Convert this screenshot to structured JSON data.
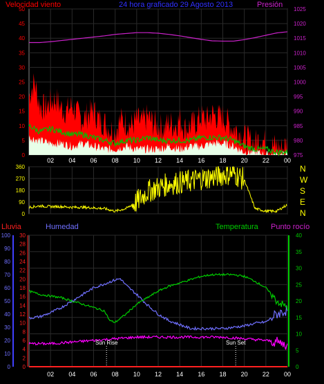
{
  "header": {
    "wind_title": "Velocidad viento",
    "center_title": "24 hora graficado   29 Agosto 2013",
    "pressure_title": "Presión"
  },
  "compass": [
    "N",
    "W",
    "S",
    "E",
    "N"
  ],
  "bottom_header": {
    "rain": "Lluvia",
    "humidity": "Humedad",
    "temperature": "Temperatura",
    "dewpoint": "Punto rocío"
  },
  "annotations": {
    "sunrise": "Sun Rise",
    "sunset": "Sun Set"
  },
  "colors": {
    "wind_gust": "#ff0000",
    "wind_avg": "#00c000",
    "wind_min": "#ffffff",
    "pressure": "#cc22cc",
    "direction": "#ffff00",
    "rain": "#ff2020",
    "humidity": "#7070ff",
    "temperature": "#00cc00",
    "dewpoint": "#ff00ff",
    "axis_blue": "#4040ff",
    "grid": "#2a2a2a"
  },
  "chart_data": [
    {
      "type": "area",
      "title": "Velocidad viento",
      "xlabel": "",
      "ylabel": "Velocidad viento",
      "x_ticks": [
        "02",
        "04",
        "06",
        "08",
        "10",
        "12",
        "14",
        "16",
        "18",
        "20",
        "22",
        "00"
      ],
      "x_range": [
        0,
        24
      ],
      "ylim": [
        0,
        50
      ],
      "y_ticks": [
        0,
        5,
        10,
        15,
        20,
        25,
        30,
        35,
        40,
        45,
        50
      ],
      "secondary_ylim": [
        975,
        1025
      ],
      "secondary_ticks": [
        975,
        980,
        985,
        990,
        995,
        1000,
        1005,
        1010,
        1015,
        1020,
        1025
      ],
      "grid": true,
      "series": [
        {
          "name": "gust",
          "axis": "left",
          "x": [
            0,
            0.5,
            1,
            1.5,
            2,
            2.5,
            3,
            3.5,
            4,
            4.5,
            5,
            5.5,
            6,
            6.5,
            7,
            7.5,
            8,
            8.5,
            9,
            9.5,
            10,
            10.5,
            11,
            11.5,
            12,
            12.5,
            13,
            13.5,
            14,
            14.5,
            15,
            15.5,
            16,
            16.5,
            17,
            17.5,
            18,
            18.5,
            19,
            19.5,
            20,
            20.5,
            21,
            21.5,
            22,
            22.5,
            23,
            23.5,
            24
          ],
          "values": [
            20,
            25,
            17,
            16,
            18,
            19,
            16,
            15,
            17,
            14,
            12,
            14,
            15,
            12,
            11,
            9,
            8,
            12,
            11,
            10,
            12,
            11,
            13,
            11,
            10,
            9,
            11,
            10,
            12,
            9,
            10,
            11,
            13,
            12,
            14,
            13,
            13,
            11,
            9,
            8,
            6,
            5,
            4,
            6,
            4,
            3,
            3,
            2,
            4
          ]
        },
        {
          "name": "avg",
          "axis": "left",
          "x": [
            0,
            1,
            2,
            3,
            4,
            5,
            6,
            7,
            8,
            9,
            10,
            11,
            12,
            13,
            14,
            15,
            16,
            17,
            18,
            19,
            20,
            21,
            22,
            23,
            24
          ],
          "values": [
            10,
            8,
            9,
            8,
            7,
            7,
            6,
            5,
            4,
            5,
            5,
            6,
            5,
            5,
            5,
            5,
            6,
            6,
            6,
            5,
            3,
            2,
            2,
            1,
            1
          ]
        },
        {
          "name": "min",
          "axis": "left",
          "x": [
            0,
            1,
            2,
            3,
            4,
            5,
            6,
            7,
            8,
            9,
            10,
            11,
            12,
            13,
            14,
            15,
            16,
            17,
            18,
            19,
            20,
            21,
            22,
            23,
            24
          ],
          "values": [
            6,
            5,
            4,
            4,
            3,
            4,
            3,
            2,
            2,
            3,
            2,
            2,
            2,
            3,
            2,
            3,
            3,
            4,
            4,
            3,
            1,
            1,
            0,
            0,
            0
          ]
        },
        {
          "name": "pressure",
          "axis": "right",
          "x": [
            0,
            1,
            2,
            3,
            4,
            5,
            6,
            7,
            8,
            9,
            10,
            11,
            12,
            13,
            14,
            15,
            16,
            17,
            18,
            19,
            20,
            21,
            22,
            23,
            24
          ],
          "values": [
            1013.5,
            1013.5,
            1013.8,
            1014.2,
            1014.6,
            1015.0,
            1015.4,
            1015.8,
            1016.3,
            1016.6,
            1016.9,
            1016.9,
            1016.7,
            1016.3,
            1015.8,
            1015.2,
            1014.6,
            1014.1,
            1014,
            1014,
            1014.5,
            1015.2,
            1016.0,
            1016.8,
            1017.2
          ]
        }
      ]
    },
    {
      "type": "line",
      "title": "",
      "ylim": [
        0,
        360
      ],
      "y_ticks": [
        0,
        90,
        180,
        270,
        360
      ],
      "x_range": [
        0,
        24
      ],
      "series": [
        {
          "name": "direction",
          "x": [
            0,
            1,
            2,
            3,
            4,
            5,
            6,
            7,
            8,
            9,
            10,
            11,
            12,
            13,
            14,
            15,
            16,
            17,
            18,
            19,
            20,
            21,
            22,
            23,
            24
          ],
          "values": [
            50,
            60,
            55,
            55,
            50,
            50,
            45,
            40,
            20,
            40,
            90,
            170,
            200,
            230,
            240,
            250,
            270,
            280,
            300,
            310,
            260,
            40,
            20,
            20,
            70
          ]
        }
      ]
    },
    {
      "type": "line",
      "title": "",
      "x_ticks": [
        "02",
        "04",
        "06",
        "08",
        "10",
        "12",
        "14",
        "16",
        "18",
        "20",
        "22",
        "00"
      ],
      "x_range": [
        0,
        24
      ],
      "axes": {
        "humidity": {
          "ylim": [
            0,
            100
          ],
          "ticks": [
            0,
            10,
            20,
            30,
            40,
            50,
            60,
            70,
            80,
            90,
            100
          ]
        },
        "rain": {
          "ylim": [
            0,
            30
          ],
          "ticks": [
            0,
            2,
            4,
            6,
            8,
            10,
            12,
            14,
            16,
            18,
            20,
            22,
            24,
            26,
            28,
            30
          ]
        },
        "temperature": {
          "ylim": [
            0,
            40
          ],
          "ticks": [
            0,
            5,
            10,
            15,
            20,
            25,
            30,
            35,
            40
          ]
        }
      },
      "grid": true,
      "series": [
        {
          "name": "Humedad",
          "axis": "humidity",
          "x": [
            0,
            1,
            2,
            3,
            4,
            5,
            6,
            7,
            8,
            8.5,
            9,
            10,
            11,
            12,
            13,
            14,
            15,
            16,
            17,
            18,
            19,
            20,
            21,
            22,
            23,
            24
          ],
          "values": [
            37,
            38,
            41,
            45,
            50,
            55,
            60,
            63,
            66,
            67,
            62,
            55,
            47,
            40,
            35,
            32,
            29,
            29,
            29,
            29,
            30,
            31,
            33,
            34,
            40,
            43
          ]
        },
        {
          "name": "Temperatura",
          "axis": "temperature",
          "x": [
            0,
            1,
            2,
            3,
            4,
            5,
            6,
            7,
            7.5,
            8,
            9,
            10,
            11,
            12,
            13,
            14,
            15,
            16,
            17,
            18,
            19,
            20,
            21,
            22,
            23,
            24
          ],
          "values": [
            23,
            22,
            21.5,
            21,
            20,
            19,
            18,
            17,
            14,
            13.5,
            16,
            19,
            21,
            23,
            24.5,
            25.5,
            26.5,
            27.5,
            28,
            28,
            28,
            27.5,
            26,
            24,
            20,
            18
          ]
        },
        {
          "name": "Punto rocío",
          "axis": "temperature",
          "x": [
            0,
            2,
            4,
            6,
            8,
            10,
            12,
            14,
            16,
            18,
            20,
            22,
            23,
            24
          ],
          "values": [
            7,
            7,
            7.5,
            8,
            8.5,
            9,
            9,
            9,
            9,
            9,
            8.5,
            8,
            7.5,
            6.5
          ]
        },
        {
          "name": "Lluvia",
          "axis": "rain",
          "x": [
            0,
            24
          ],
          "values": [
            0,
            0
          ]
        }
      ],
      "markers": [
        {
          "label": "Sun Rise",
          "x": 7.2
        },
        {
          "label": "Sun Set",
          "x": 19.2
        }
      ]
    }
  ]
}
